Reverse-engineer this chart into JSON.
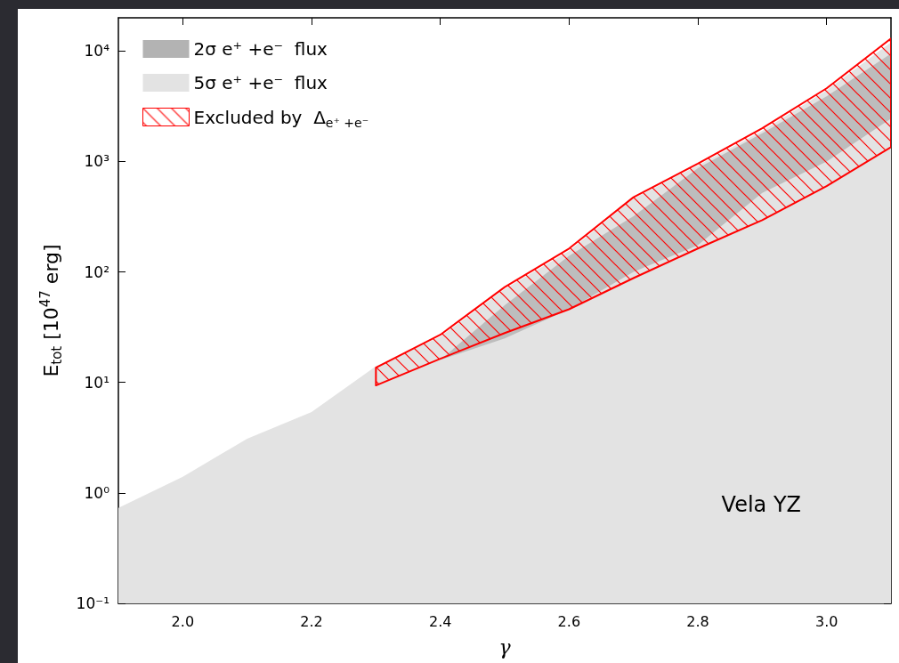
{
  "chart_data": {
    "type": "area",
    "xlabel": "γ",
    "ylabel": "E$_{tot}$ [10$^{47}$ erg]",
    "xlim": [
      1.9,
      3.1
    ],
    "xticks": [
      {
        "value": 2.0,
        "label": "2.0"
      },
      2.2,
      2.4,
      2.6,
      2.8,
      {
        "value": 3.0,
        "label": "3.0"
      }
    ],
    "ylim": [
      0.1,
      20000
    ],
    "log": true,
    "yticks": [
      {
        "value": 0.1,
        "label": "10⁻¹"
      },
      {
        "value": 1,
        "label": "10⁰"
      },
      {
        "value": 10,
        "label": "10¹"
      },
      {
        "value": 100,
        "label": "10²"
      },
      {
        "value": 1000,
        "label": "10³"
      },
      {
        "value": 10000,
        "label": "10⁴"
      }
    ],
    "legend": "top left",
    "grid": false,
    "annotations": [
      "Vela YZ"
    ],
    "series": [
      {
        "name": "2σ e⁺ +e⁻  flux",
        "color": "#b3b3b3",
        "x": [
          2.4,
          2.5,
          2.6,
          2.7,
          2.8,
          2.9,
          3.0,
          3.1
        ],
        "values": [
          null,
          null,
          null,
          null,
          null,
          null,
          null,
          null
        ],
        "upper": [
          16,
          50,
          140,
          320,
          870,
          1800,
          3900,
          9500
        ],
        "lower": [
          16,
          25,
          46,
          100,
          175,
          520,
          1000,
          2450
        ]
      },
      {
        "name": "5σ e⁺ +e⁻  flux",
        "color": "#e3e3e3",
        "x": [
          1.9,
          2.0,
          2.1,
          2.2,
          2.3,
          2.4,
          2.5,
          2.6,
          2.7,
          2.8,
          2.9,
          3.0,
          3.1
        ],
        "values": [
          0.73,
          1.4,
          3.1,
          5.4,
          14,
          26,
          70,
          155,
          460,
          920,
          1900,
          4400,
          12000
        ]
      },
      {
        "name": "Excluded by  Δ$_{e⁺ +e⁻}$",
        "color": "#ff0000",
        "line_style": "solid",
        "x": [
          2.3,
          2.4,
          2.5,
          2.6,
          2.7,
          2.8,
          2.9,
          3.0,
          3.1
        ],
        "values": [
          null,
          null,
          null,
          null,
          null,
          null,
          null,
          null,
          null
        ],
        "upper": [
          13.6,
          27,
          73,
          163,
          475,
          955,
          2000,
          4600,
          13000
        ],
        "lower": [
          9.4,
          16.4,
          28,
          46,
          88,
          163,
          295,
          600,
          1350
        ]
      }
    ]
  }
}
